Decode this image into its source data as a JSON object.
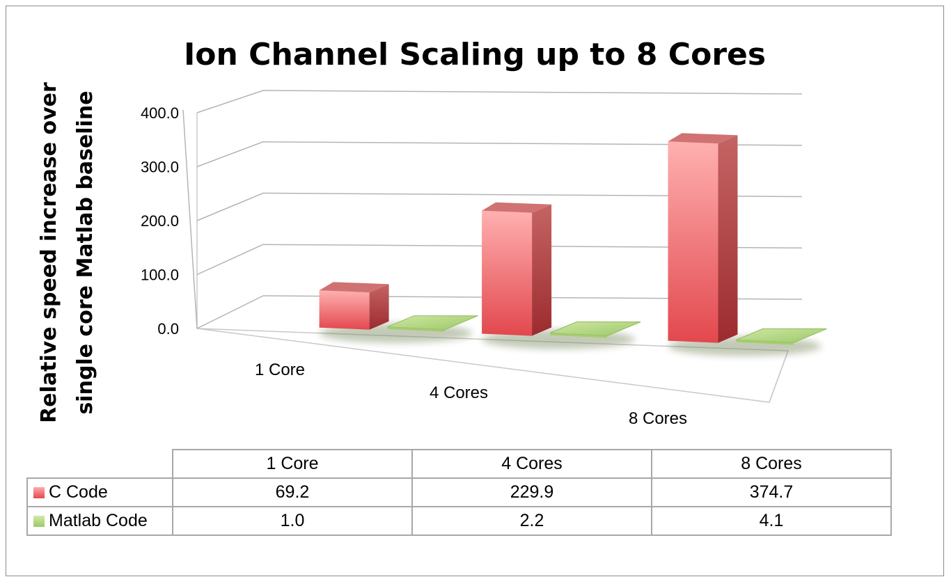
{
  "chart_data": {
    "type": "bar",
    "title": "Ion Channel Scaling up to 8 Cores",
    "ylabel_lines": [
      "Relative speed increase over",
      "single core Matlab baseline"
    ],
    "categories": [
      "1 Core",
      "4 Cores",
      "8 Cores"
    ],
    "y_ticks": [
      "0.0",
      "100.0",
      "200.0",
      "300.0",
      "400.0"
    ],
    "ylim": [
      0,
      400
    ],
    "grid": true,
    "style": "3d-clustered-column",
    "series": [
      {
        "name": "C Code",
        "values": [
          69.2,
          229.9,
          374.7
        ],
        "display": [
          "69.2",
          "229.9",
          "374.7"
        ],
        "color": "#e8606a"
      },
      {
        "name": "Matlab Code",
        "values": [
          1.0,
          2.2,
          4.1
        ],
        "display": [
          "1.0",
          "2.2",
          "4.1"
        ],
        "color": "#a8cf70"
      }
    ],
    "legend_placement": "data-table"
  }
}
